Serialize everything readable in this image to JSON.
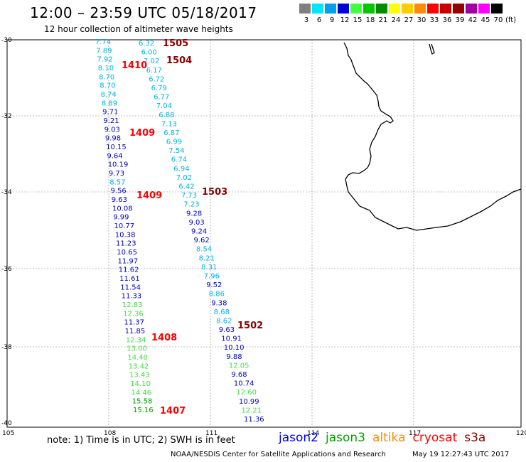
{
  "title": "12:00 – 23:59 UTC 05/18/2017",
  "subtitle": "12 hour collection of altimeter wave heights",
  "legend": {
    "unit": "(ft)",
    "items": [
      {
        "label": "3",
        "color": "#808080"
      },
      {
        "label": "6",
        "color": "#00e5ff"
      },
      {
        "label": "9",
        "color": "#00a0f0"
      },
      {
        "label": "12",
        "color": "#0000dd"
      },
      {
        "label": "15",
        "color": "#40ff40"
      },
      {
        "label": "18",
        "color": "#00c800"
      },
      {
        "label": "21",
        "color": "#008c00"
      },
      {
        "label": "24",
        "color": "#ffff00"
      },
      {
        "label": "27",
        "color": "#ffcc00"
      },
      {
        "label": "30",
        "color": "#ff8c00"
      },
      {
        "label": "33",
        "color": "#ff0000"
      },
      {
        "label": "36",
        "color": "#c80000"
      },
      {
        "label": "39",
        "color": "#960000"
      },
      {
        "label": "42",
        "color": "#a000a0"
      },
      {
        "label": "45",
        "color": "#ff00ff"
      },
      {
        "label": "70",
        "color": "#000000"
      }
    ]
  },
  "axes": {
    "lat_labels": [
      "-30",
      "-32",
      "-34",
      "-36",
      "-38",
      "-40"
    ],
    "lon_labels": [
      "105",
      "108",
      "111",
      "114",
      "117",
      "120"
    ]
  },
  "note": "note: 1) Time is in UTC; 2) SWH is in feet",
  "satellites": [
    {
      "name": "jason2",
      "color": "#0000ff"
    },
    {
      "name": "jason3",
      "color": "#00a000"
    },
    {
      "name": "altika",
      "color": "#ff8c00"
    },
    {
      "name": "cryosat",
      "color": "#ff0000"
    },
    {
      "name": "s3a",
      "color": "#8b0000"
    }
  ],
  "credit": "NOAA/NESDIS Center for Satellite Applications and Research",
  "timestamp": "May 19 12:27:43 UTC 2017",
  "colors": {
    "c6": "#00b4e6",
    "c9": "#18a0e0",
    "c12": "#0000c8",
    "c15": "#44dd44",
    "c18": "#00a000",
    "time_red": "#ff0000",
    "time_dark": "#8b0000"
  },
  "time_labels": [
    {
      "text": "1505",
      "color": "time_dark"
    },
    {
      "text": "1504",
      "color": "time_dark"
    },
    {
      "text": "1410",
      "color": "time_red"
    },
    {
      "text": "1409",
      "color": "time_red"
    },
    {
      "text": "1503",
      "color": "time_dark"
    },
    {
      "text": "1409",
      "color": "time_red"
    },
    {
      "text": "1502",
      "color": "time_dark"
    },
    {
      "text": "1408",
      "color": "time_red"
    },
    {
      "text": "1407",
      "color": "time_red"
    }
  ],
  "track_left": [
    {
      "v": "7.74",
      "c": "c6"
    },
    {
      "v": "7.89",
      "c": "c6"
    },
    {
      "v": "7.92",
      "c": "c6"
    },
    {
      "v": "8.10",
      "c": "c6"
    },
    {
      "v": "8.70",
      "c": "c6"
    },
    {
      "v": "8.70",
      "c": "c6"
    },
    {
      "v": "8.74",
      "c": "c6"
    },
    {
      "v": "8.89",
      "c": "c6"
    },
    {
      "v": "9.71",
      "c": "c12"
    },
    {
      "v": "9.21",
      "c": "c12"
    },
    {
      "v": "9.03",
      "c": "c12"
    },
    {
      "v": "9.98",
      "c": "c12"
    },
    {
      "v": "10.15",
      "c": "c12"
    },
    {
      "v": "9.64",
      "c": "c12"
    },
    {
      "v": "10.19",
      "c": "c12"
    },
    {
      "v": "9.73",
      "c": "c12"
    },
    {
      "v": "8.57",
      "c": "c6"
    },
    {
      "v": "9.56",
      "c": "c12"
    },
    {
      "v": "9.63",
      "c": "c12"
    },
    {
      "v": "10.08",
      "c": "c12"
    },
    {
      "v": "9.99",
      "c": "c12"
    },
    {
      "v": "10.77",
      "c": "c12"
    },
    {
      "v": "10.38",
      "c": "c12"
    },
    {
      "v": "11.23",
      "c": "c12"
    },
    {
      "v": "10.65",
      "c": "c12"
    },
    {
      "v": "11.97",
      "c": "c12"
    },
    {
      "v": "11.62",
      "c": "c12"
    },
    {
      "v": "11.61",
      "c": "c12"
    },
    {
      "v": "11.54",
      "c": "c12"
    },
    {
      "v": "11.33",
      "c": "c12"
    },
    {
      "v": "12.83",
      "c": "c15"
    },
    {
      "v": "12.36",
      "c": "c15"
    },
    {
      "v": "11.37",
      "c": "c12"
    },
    {
      "v": "11.85",
      "c": "c12"
    },
    {
      "v": "12.34",
      "c": "c15"
    },
    {
      "v": "13.00",
      "c": "c15"
    },
    {
      "v": "14.40",
      "c": "c15"
    },
    {
      "v": "13.42",
      "c": "c15"
    },
    {
      "v": "13.43",
      "c": "c15"
    },
    {
      "v": "14.10",
      "c": "c15"
    },
    {
      "v": "14.46",
      "c": "c15"
    },
    {
      "v": "15.58",
      "c": "c18"
    },
    {
      "v": "15.16",
      "c": "c18"
    }
  ],
  "track_right": [
    {
      "v": "6.32",
      "c": "c6"
    },
    {
      "v": "6.00",
      "c": "c6"
    },
    {
      "v": "7.02",
      "c": "c6"
    },
    {
      "v": "6.17",
      "c": "c6"
    },
    {
      "v": "6.72",
      "c": "c6"
    },
    {
      "v": "6.79",
      "c": "c6"
    },
    {
      "v": "6.77",
      "c": "c6"
    },
    {
      "v": "7.04",
      "c": "c6"
    },
    {
      "v": "6.88",
      "c": "c6"
    },
    {
      "v": "7.13",
      "c": "c6"
    },
    {
      "v": "6.87",
      "c": "c6"
    },
    {
      "v": "6.99",
      "c": "c6"
    },
    {
      "v": "7.54",
      "c": "c6"
    },
    {
      "v": "6.74",
      "c": "c6"
    },
    {
      "v": "6.94",
      "c": "c6"
    },
    {
      "v": "7.02",
      "c": "c6"
    },
    {
      "v": "6.42",
      "c": "c6"
    },
    {
      "v": "7.73",
      "c": "c6"
    },
    {
      "v": "7.23",
      "c": "c6"
    },
    {
      "v": "9.28",
      "c": "c12"
    },
    {
      "v": "9.03",
      "c": "c12"
    },
    {
      "v": "9.24",
      "c": "c12"
    },
    {
      "v": "9.62",
      "c": "c12"
    },
    {
      "v": "8.54",
      "c": "c6"
    },
    {
      "v": "8.21",
      "c": "c6"
    },
    {
      "v": "8.31",
      "c": "c6"
    },
    {
      "v": "7.96",
      "c": "c6"
    },
    {
      "v": "9.52",
      "c": "c12"
    },
    {
      "v": "8.86",
      "c": "c6"
    },
    {
      "v": "9.38",
      "c": "c12"
    },
    {
      "v": "8.68",
      "c": "c6"
    },
    {
      "v": "8.62",
      "c": "c6"
    },
    {
      "v": "9.63",
      "c": "c12"
    },
    {
      "v": "10.91",
      "c": "c12"
    },
    {
      "v": "10.10",
      "c": "c12"
    },
    {
      "v": "9.88",
      "c": "c12"
    },
    {
      "v": "12.05",
      "c": "c15"
    },
    {
      "v": "9.68",
      "c": "c12"
    },
    {
      "v": "10.74",
      "c": "c12"
    },
    {
      "v": "12.60",
      "c": "c15"
    },
    {
      "v": "10.99",
      "c": "c12"
    },
    {
      "v": "12.21",
      "c": "c15"
    },
    {
      "v": "11.36",
      "c": "c12"
    }
  ]
}
